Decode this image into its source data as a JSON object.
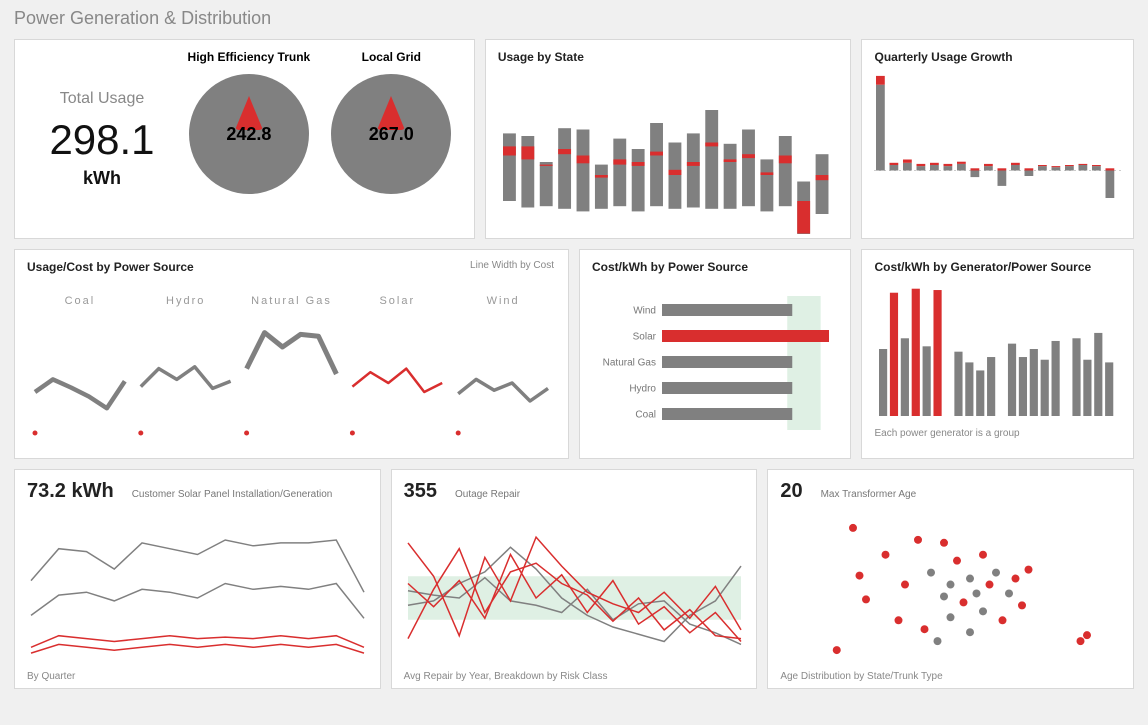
{
  "title": "Power Generation & Distribution",
  "colors": {
    "grey": "#808080",
    "red": "#d92e2e",
    "lightgrey": "#bdbdbd",
    "green_band": "#dff0e4"
  },
  "total_usage": {
    "label": "Total Usage",
    "value": "298.1",
    "unit": "kWh",
    "gauges": [
      {
        "label": "High Efficiency Trunk",
        "value": "242.8"
      },
      {
        "label": "Local Grid",
        "value": "267.0"
      }
    ]
  },
  "usage_by_state": {
    "title": "Usage by State",
    "n": 18,
    "grey_hi": [
      62,
      60,
      40,
      66,
      65,
      38,
      58,
      50,
      70,
      55,
      62,
      80,
      54,
      65,
      42,
      60,
      25,
      46
    ],
    "grey_lo": [
      10,
      5,
      6,
      4,
      2,
      4,
      6,
      2,
      6,
      4,
      5,
      4,
      4,
      6,
      2,
      6,
      -35,
      0
    ],
    "red_hi": [
      52,
      52,
      38,
      50,
      45,
      30,
      42,
      40,
      48,
      34,
      40,
      55,
      42,
      46,
      32,
      45,
      10,
      30
    ],
    "red_cnt": [
      7,
      10,
      1,
      4,
      6,
      2,
      4,
      3,
      3,
      4,
      3,
      3,
      2,
      3,
      2,
      6,
      25,
      4
    ]
  },
  "quarterly_growth": {
    "title": "Quarterly Usage Growth",
    "n": 18,
    "base": 0.45,
    "grey": [
      0.78,
      0.05,
      0.07,
      0.04,
      0.05,
      0.04,
      0.06,
      -0.06,
      0.04,
      -0.14,
      0.05,
      -0.05,
      0.04,
      0.03,
      0.04,
      0.05,
      0.04,
      -0.25
    ],
    "red": [
      0.08,
      0.02,
      0.03,
      0.02,
      0.02,
      0.02,
      0.02,
      0.02,
      0.02,
      0.02,
      0.02,
      0.02,
      0.01,
      0.01,
      0.01,
      0.01,
      0.01,
      0.02
    ]
  },
  "ucps": {
    "title": "Usage/Cost by Power Source",
    "subtitle": "Line Width by Cost",
    "sources": [
      "Coal",
      "Hydro",
      "Natural Gas",
      "Solar",
      "Wind"
    ],
    "series": [
      {
        "y": [
          30,
          44,
          35,
          25,
          12,
          42
        ],
        "w": 4.5,
        "color": "#808080"
      },
      {
        "y": [
          36,
          56,
          44,
          58,
          34,
          42
        ],
        "w": 3.5,
        "color": "#808080"
      },
      {
        "y": [
          56,
          96,
          80,
          94,
          92,
          50
        ],
        "w": 5,
        "color": "#808080"
      },
      {
        "y": [
          36,
          52,
          40,
          56,
          30,
          40
        ],
        "w": 2.5,
        "color": "#d92e2e"
      },
      {
        "y": [
          28,
          44,
          32,
          40,
          20,
          34
        ],
        "w": 3.5,
        "color": "#808080"
      }
    ],
    "dots_y": 6
  },
  "ckps": {
    "title": "Cost/kWh by Power Source",
    "band_start": 0.75,
    "band_end": 0.95,
    "rows": [
      {
        "label": "Wind",
        "v": 0.78,
        "color": "#808080"
      },
      {
        "label": "Solar",
        "v": 1.0,
        "color": "#d92e2e"
      },
      {
        "label": "Natural Gas",
        "v": 0.78,
        "color": "#808080"
      },
      {
        "label": "Hydro",
        "v": 0.78,
        "color": "#808080"
      },
      {
        "label": "Coal",
        "v": 0.78,
        "color": "#808080"
      }
    ]
  },
  "cgps": {
    "title": "Cost/kWh by Generator/Power Source",
    "footnote": "Each power generator is a group",
    "groups": [
      [
        50,
        92,
        58,
        95,
        52,
        94
      ],
      [
        48,
        40,
        34,
        44
      ],
      [
        54,
        44,
        50,
        42,
        56
      ],
      [
        58,
        42,
        62,
        40
      ]
    ],
    "red_index": {
      "0": [
        1,
        3,
        5
      ]
    }
  },
  "solar": {
    "value": "73.2 kWh",
    "subtitle": "Customer Solar Panel Installation/Generation",
    "footnote": "By Quarter",
    "lines": [
      {
        "color": "#808080",
        "w": 1.5,
        "y": [
          52,
          74,
          72,
          60,
          78,
          74,
          70,
          80,
          76,
          78,
          78,
          80,
          44
        ]
      },
      {
        "color": "#808080",
        "w": 1.5,
        "y": [
          28,
          42,
          44,
          38,
          46,
          44,
          40,
          50,
          46,
          48,
          46,
          50,
          26
        ]
      },
      {
        "color": "#d92e2e",
        "w": 1.5,
        "y": [
          6,
          14,
          12,
          10,
          12,
          14,
          12,
          13,
          12,
          14,
          12,
          14,
          6
        ]
      },
      {
        "color": "#d92e2e",
        "w": 1.5,
        "y": [
          2,
          8,
          6,
          4,
          6,
          8,
          6,
          8,
          6,
          8,
          6,
          8,
          2
        ]
      }
    ]
  },
  "outage": {
    "value": "355",
    "subtitle": "Outage Repair",
    "footnote": "Avg Repair by Year, Breakdown by Risk Class",
    "band_lo": 0.25,
    "band_hi": 0.55,
    "lines": [
      {
        "color": "#808080",
        "w": 1.5,
        "y": [
          35,
          38,
          50,
          58,
          75,
          60,
          40,
          28,
          20,
          15,
          10,
          28,
          38,
          62
        ]
      },
      {
        "color": "#808080",
        "w": 1.5,
        "y": [
          45,
          42,
          40,
          54,
          38,
          35,
          30,
          46,
          25,
          36,
          38,
          22,
          16,
          8
        ]
      },
      {
        "color": "#d92e2e",
        "w": 1.5,
        "y": [
          78,
          55,
          14,
          68,
          38,
          82,
          62,
          44,
          36,
          30,
          44,
          26,
          48,
          18
        ]
      },
      {
        "color": "#d92e2e",
        "w": 1.5,
        "y": [
          12,
          46,
          74,
          30,
          58,
          64,
          50,
          42,
          24,
          40,
          18,
          32,
          14,
          12
        ]
      },
      {
        "color": "#d92e2e",
        "w": 1.5,
        "y": [
          50,
          34,
          52,
          26,
          70,
          40,
          56,
          30,
          52,
          22,
          34,
          16,
          30,
          10
        ]
      }
    ]
  },
  "transformer": {
    "value": "20",
    "subtitle": "Max Transformer Age",
    "footnote": "Age Distribution by State/Trunk Type",
    "points": [
      [
        0.15,
        0.08,
        "r"
      ],
      [
        0.2,
        0.9,
        "r"
      ],
      [
        0.22,
        0.58,
        "r"
      ],
      [
        0.24,
        0.42,
        "r"
      ],
      [
        0.3,
        0.72,
        "r"
      ],
      [
        0.34,
        0.28,
        "r"
      ],
      [
        0.36,
        0.52,
        "r"
      ],
      [
        0.4,
        0.82,
        "r"
      ],
      [
        0.42,
        0.22,
        "r"
      ],
      [
        0.44,
        0.6,
        "g"
      ],
      [
        0.46,
        0.14,
        "g"
      ],
      [
        0.48,
        0.44,
        "g"
      ],
      [
        0.48,
        0.8,
        "r"
      ],
      [
        0.5,
        0.52,
        "g"
      ],
      [
        0.5,
        0.3,
        "g"
      ],
      [
        0.52,
        0.68,
        "r"
      ],
      [
        0.54,
        0.4,
        "r"
      ],
      [
        0.56,
        0.56,
        "g"
      ],
      [
        0.56,
        0.2,
        "g"
      ],
      [
        0.58,
        0.46,
        "g"
      ],
      [
        0.6,
        0.72,
        "r"
      ],
      [
        0.6,
        0.34,
        "g"
      ],
      [
        0.62,
        0.52,
        "r"
      ],
      [
        0.64,
        0.6,
        "g"
      ],
      [
        0.66,
        0.28,
        "r"
      ],
      [
        0.68,
        0.46,
        "g"
      ],
      [
        0.7,
        0.56,
        "r"
      ],
      [
        0.72,
        0.38,
        "r"
      ],
      [
        0.74,
        0.62,
        "r"
      ],
      [
        0.9,
        0.14,
        "r"
      ],
      [
        0.92,
        0.18,
        "r"
      ]
    ]
  }
}
